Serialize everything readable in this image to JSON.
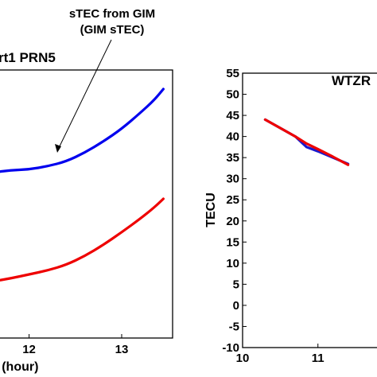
{
  "chart_data": [
    {
      "type": "line",
      "title": "rt1 PRN5",
      "xlabel": "T (hour)",
      "ylabel": "",
      "xlim": [
        11.6,
        13.55
      ],
      "x_ticks": [
        12,
        13
      ],
      "annotation": {
        "lines": [
          "sTEC from GIM",
          "(GIM sTEC)"
        ],
        "points_to_x": 12.52
      },
      "series": [
        {
          "color": "#0000ee",
          "x": [
            11.6,
            11.8,
            12.0,
            12.2,
            12.4,
            12.6,
            12.8,
            13.0,
            13.2,
            13.35,
            13.45
          ],
          "y": [
            217,
            214,
            213,
            209,
            203,
            192,
            178,
            162,
            142,
            126,
            112
          ]
        },
        {
          "color": "#ee0000",
          "x": [
            11.6,
            11.8,
            12.0,
            12.2,
            12.4,
            12.6,
            12.8,
            13.0,
            13.2,
            13.35,
            13.45
          ],
          "y": [
            354,
            350,
            345,
            340,
            333,
            322,
            308,
            292,
            275,
            261,
            250
          ]
        }
      ]
    },
    {
      "type": "line",
      "title": "WTZR",
      "xlabel": "",
      "ylabel": "TECU",
      "xlim": [
        10,
        11.9
      ],
      "ylim": [
        -10,
        55
      ],
      "x_ticks": [
        10,
        11
      ],
      "y_ticks": [
        -10,
        -5,
        0,
        5,
        10,
        15,
        20,
        25,
        30,
        35,
        40,
        45,
        50,
        55
      ],
      "series": [
        {
          "color": "#1a1acc",
          "x": [
            10.3,
            10.5,
            10.7,
            10.85,
            11.0,
            11.2,
            11.4
          ],
          "y": [
            44,
            42,
            40,
            37.5,
            36.5,
            35,
            33.5
          ]
        },
        {
          "color": "#ee0000",
          "x": [
            10.3,
            10.5,
            10.7,
            10.85,
            11.0,
            11.2,
            11.4
          ],
          "y": [
            44,
            42,
            40,
            38.3,
            37,
            35.2,
            33.3
          ]
        }
      ]
    }
  ]
}
